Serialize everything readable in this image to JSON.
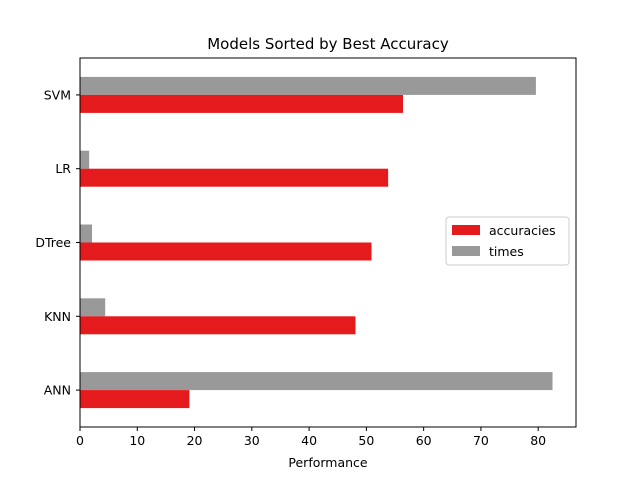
{
  "chart_data": {
    "type": "bar",
    "orientation": "horizontal",
    "title": "Models Sorted by Best Accuracy",
    "xlabel": "Performance",
    "ylabel": "",
    "categories": [
      "ANN",
      "KNN",
      "DTree",
      "LR",
      "SVM"
    ],
    "series": [
      {
        "name": "accuracies",
        "color": "#e41a1c",
        "values": [
          19.1,
          48.1,
          50.9,
          53.8,
          56.4
        ]
      },
      {
        "name": "times",
        "color": "#999999",
        "values": [
          82.5,
          4.4,
          2.1,
          1.6,
          79.6
        ]
      }
    ],
    "xlim": [
      0,
      86.6
    ],
    "xticks": [
      0,
      10,
      20,
      30,
      40,
      50,
      60,
      70,
      80
    ],
    "grid": false,
    "legend_position": "center-right"
  }
}
